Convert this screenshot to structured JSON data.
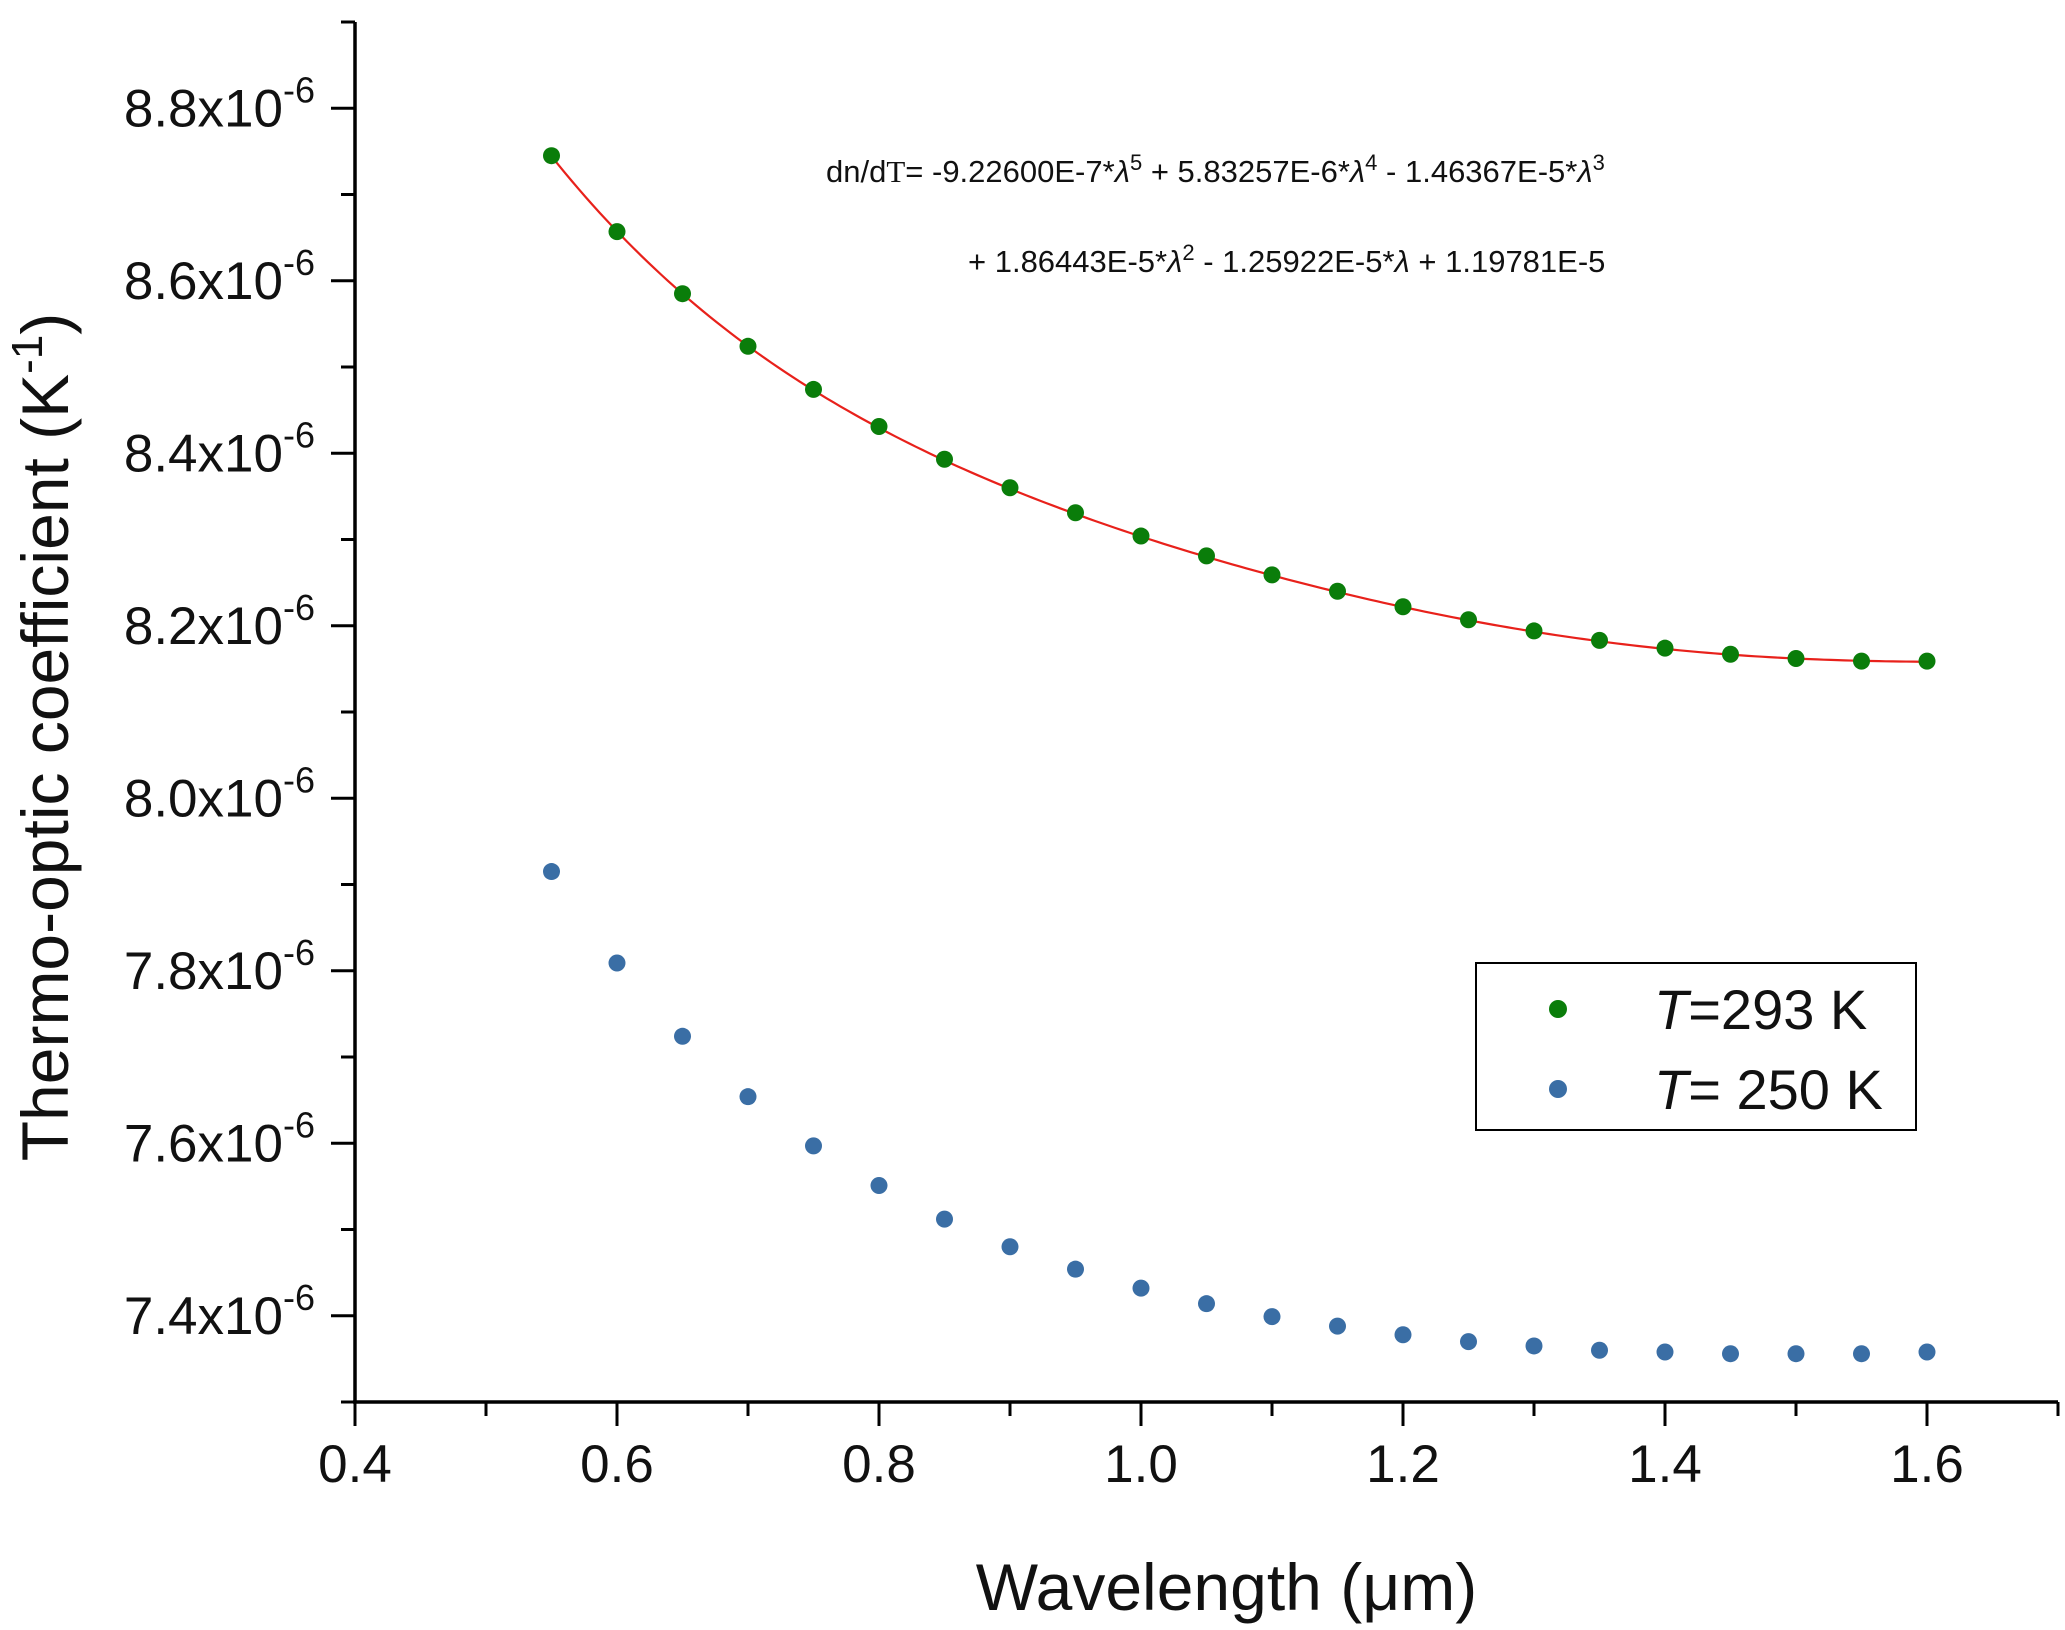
{
  "chart_data": {
    "type": "scatter",
    "title": "",
    "xlabel": "Wavelength (μm)",
    "ylabel": "Thermo-optic coefficient (K⁻¹)",
    "ylabel_parts": {
      "main": "Thermo-optic coefficient (K",
      "sup": "-1",
      "tail": ")"
    },
    "xlim": [
      0.4,
      1.7
    ],
    "ylim": [
      7.3e-06,
      8.9e-06
    ],
    "x_ticks": [
      0.4,
      0.6,
      0.8,
      1.0,
      1.2,
      1.4,
      1.6
    ],
    "x_tick_labels": [
      "0.4",
      "0.6",
      "0.8",
      "1.0",
      "1.2",
      "1.4",
      "1.6"
    ],
    "y_ticks": [
      7.4e-06,
      7.6e-06,
      7.8e-06,
      8e-06,
      8.2e-06,
      8.4e-06,
      8.6e-06,
      8.8e-06
    ],
    "y_tick_labels": [
      {
        "mantissa": "7.4x10",
        "exp": "-6"
      },
      {
        "mantissa": "7.6x10",
        "exp": "-6"
      },
      {
        "mantissa": "7.8x10",
        "exp": "-6"
      },
      {
        "mantissa": "8.0x10",
        "exp": "-6"
      },
      {
        "mantissa": "8.2x10",
        "exp": "-6"
      },
      {
        "mantissa": "8.4x10",
        "exp": "-6"
      },
      {
        "mantissa": "8.6x10",
        "exp": "-6"
      },
      {
        "mantissa": "8.8x10",
        "exp": "-6"
      }
    ],
    "grid": false,
    "legend_position": "right",
    "x": [
      0.55,
      0.6,
      0.65,
      0.7,
      0.75,
      0.8,
      0.85,
      0.9,
      0.95,
      1.0,
      1.05,
      1.1,
      1.15,
      1.2,
      1.25,
      1.3,
      1.35,
      1.4,
      1.45,
      1.5,
      1.55,
      1.6
    ],
    "series": [
      {
        "name": "T=293 K",
        "legend_italic": "T",
        "legend_rest": "=293 K",
        "color": "#0a7d0a",
        "values": [
          8.745e-06,
          8.657e-06,
          8.585e-06,
          8.524e-06,
          8.474e-06,
          8.431e-06,
          8.393e-06,
          8.36e-06,
          8.331e-06,
          8.304e-06,
          8.281e-06,
          8.259e-06,
          8.24e-06,
          8.222e-06,
          8.207e-06,
          8.194e-06,
          8.183e-06,
          8.174e-06,
          8.167e-06,
          8.162e-06,
          8.159e-06,
          8.159e-06
        ]
      },
      {
        "name": "T= 250 K",
        "legend_italic": "T",
        "legend_rest": "= 250 K",
        "color": "#3a6ea5",
        "values": [
          7.915e-06,
          7.809e-06,
          7.724e-06,
          7.654e-06,
          7.597e-06,
          7.551e-06,
          7.512e-06,
          7.48e-06,
          7.454e-06,
          7.432e-06,
          7.414e-06,
          7.399e-06,
          7.388e-06,
          7.378e-06,
          7.37e-06,
          7.365e-06,
          7.36e-06,
          7.358e-06,
          7.356e-06,
          7.356e-06,
          7.356e-06,
          7.358e-06
        ]
      }
    ],
    "fit": {
      "series": "T=293 K",
      "color": "#e8211b",
      "coefficients": [
        -9.226e-07,
        5.83257e-06,
        -1.46367e-05,
        1.86443e-05,
        -1.25922e-05,
        1.19781e-05
      ],
      "line1": [
        {
          "t": "dn/d"
        },
        {
          "t": "T",
          "serif": true
        },
        {
          "t": "= -9.22600E-7*"
        },
        {
          "t": "λ",
          "it": true
        },
        {
          "t": "5",
          "sup": true
        },
        {
          "t": " + 5.83257E-6*"
        },
        {
          "t": "λ",
          "it": true
        },
        {
          "t": "4",
          "sup": true
        },
        {
          "t": " - 1.46367E-5*"
        },
        {
          "t": "λ",
          "it": true
        },
        {
          "t": "3",
          "sup": true
        }
      ],
      "line2": [
        {
          "t": "+ 1.86443E-5*"
        },
        {
          "t": "λ",
          "it": true
        },
        {
          "t": "2",
          "sup": true
        },
        {
          "t": " - 1.25922E-5*"
        },
        {
          "t": "λ",
          "it": true
        },
        {
          "t": " + 1.19781E-5"
        }
      ]
    }
  }
}
